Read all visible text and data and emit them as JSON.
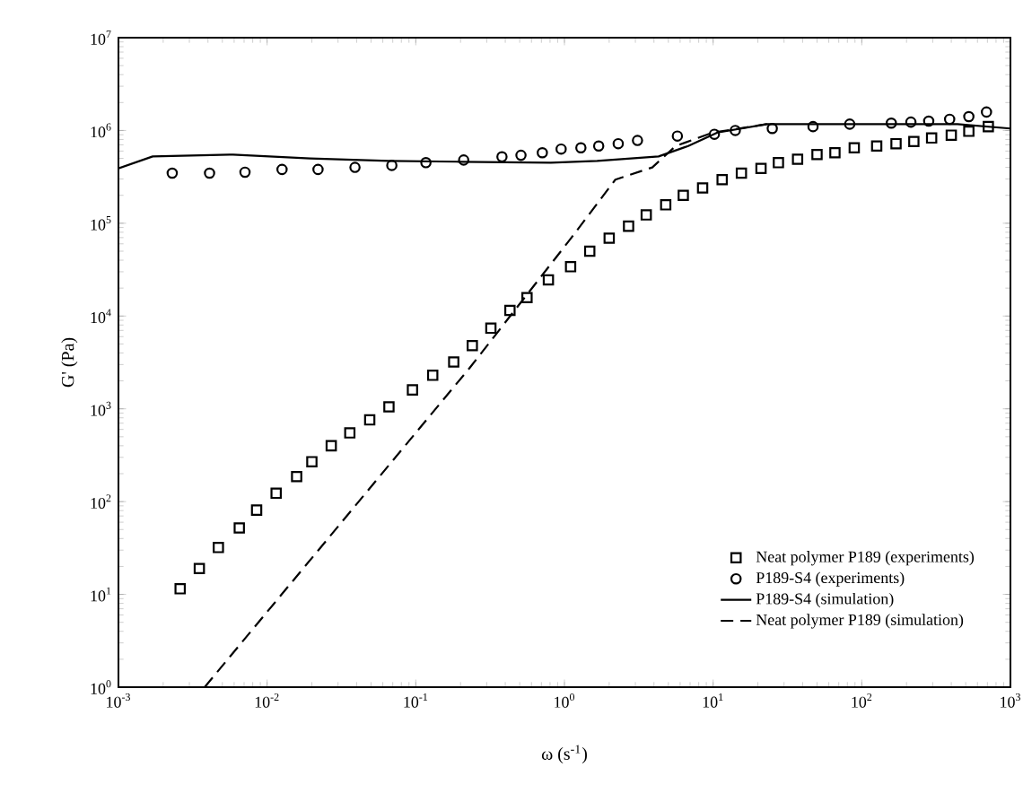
{
  "chart_data": {
    "type": "scatter",
    "xlabel": "ω (s$^{-1}$)",
    "ylabel": "G' (Pa)",
    "log": "xy",
    "grid": false,
    "legend": "bottom right",
    "xlim": [
      0.001,
      1000
    ],
    "ylim": [
      1,
      10000000
    ],
    "xticks": [
      {
        "value": 0.001,
        "label": "10$^{-3}$"
      },
      {
        "value": 0.01,
        "label": "10$^{-2}$"
      },
      {
        "value": 0.1,
        "label": "10$^{-1}$"
      },
      {
        "value": 1,
        "label": "10$^{0}$"
      },
      {
        "value": 10,
        "label": "10$^{1}$"
      },
      {
        "value": 100,
        "label": "10$^{2}$"
      },
      {
        "value": 1000,
        "label": "10$^{3}$"
      }
    ],
    "yticks": [
      {
        "value": 1,
        "label": "10$^{0}$"
      },
      {
        "value": 10,
        "label": "10$^{1}$"
      },
      {
        "value": 100,
        "label": "10$^{2}$"
      },
      {
        "value": 1000,
        "label": "10$^{3}$"
      },
      {
        "value": 10000,
        "label": "10$^{4}$"
      },
      {
        "value": 100000,
        "label": "10$^{5}$"
      },
      {
        "value": 1000000,
        "label": "10$^{6}$"
      },
      {
        "value": 10000000,
        "label": "10$^{7}$"
      }
    ],
    "series": [
      {
        "name": "Neat polymer P189 (experiments)",
        "marker": "square",
        "color": "#000000",
        "x": [
          0.0026,
          0.0035,
          0.0047,
          0.0065,
          0.0085,
          0.0115,
          0.0158,
          0.02,
          0.027,
          0.036,
          0.049,
          0.066,
          0.095,
          0.13,
          0.18,
          0.24,
          0.32,
          0.43,
          0.56,
          0.78,
          1.1,
          1.48,
          2.0,
          2.7,
          3.55,
          4.8,
          6.3,
          8.5,
          11.5,
          15.5,
          21,
          27.5,
          37,
          50,
          66,
          89,
          126,
          170,
          224,
          295,
          400,
          525,
          710
        ],
        "values": [
          11.5,
          19,
          32,
          52,
          81,
          123,
          186,
          269,
          400,
          550,
          760,
          1050,
          1600,
          2300,
          3200,
          4800,
          7400,
          11500,
          15800,
          24500,
          34000,
          50000,
          69000,
          93000,
          123000,
          158000,
          200000,
          240000,
          295000,
          347000,
          390000,
          450000,
          490000,
          550000,
          575000,
          650000,
          680000,
          720000,
          760000,
          830000,
          890000,
          980000,
          1100000
        ]
      },
      {
        "name": "P189-S4 (experiments)",
        "marker": "circle",
        "color": "#000000",
        "x": [
          0.0023,
          0.0041,
          0.0071,
          0.0126,
          0.022,
          0.039,
          0.069,
          0.117,
          0.21,
          0.38,
          0.51,
          0.71,
          0.95,
          1.29,
          1.7,
          2.3,
          3.1,
          5.75,
          10.2,
          14.1,
          25,
          47,
          83,
          158,
          214,
          282,
          390,
          525,
          690
        ],
        "values": [
          347000,
          347000,
          355000,
          380000,
          380000,
          400000,
          420000,
          450000,
          480000,
          520000,
          540000,
          575000,
          630000,
          650000,
          680000,
          720000,
          780000,
          870000,
          910000,
          1000000,
          1050000,
          1100000,
          1170000,
          1200000,
          1230000,
          1260000,
          1320000,
          1410000,
          1580000
        ]
      },
      {
        "name": "P189-S4 (simulation)",
        "type": "line",
        "line_style": "solid",
        "color": "#000000",
        "x": [
          0.001,
          0.0017,
          0.0059,
          0.0195,
          0.066,
          0.2,
          0.81,
          1.66,
          4.3,
          6.8,
          10.7,
          23,
          69,
          440,
          1000
        ],
        "values": [
          390000,
          525000,
          550000,
          500000,
          470000,
          460000,
          450000,
          470000,
          525000,
          680000,
          950000,
          1170000,
          1170000,
          1170000,
          1050000
        ]
      },
      {
        "name": "Neat polymer P189 (simulation)",
        "type": "line",
        "line_style": "dashed",
        "color": "#000000",
        "x": [
          0.0038,
          0.23,
          1.1,
          2.2,
          3.9,
          5.6,
          10,
          23
        ],
        "values": [
          1,
          2750,
          68000,
          295000,
          400000,
          680000,
          950000,
          1170000
        ]
      }
    ]
  }
}
